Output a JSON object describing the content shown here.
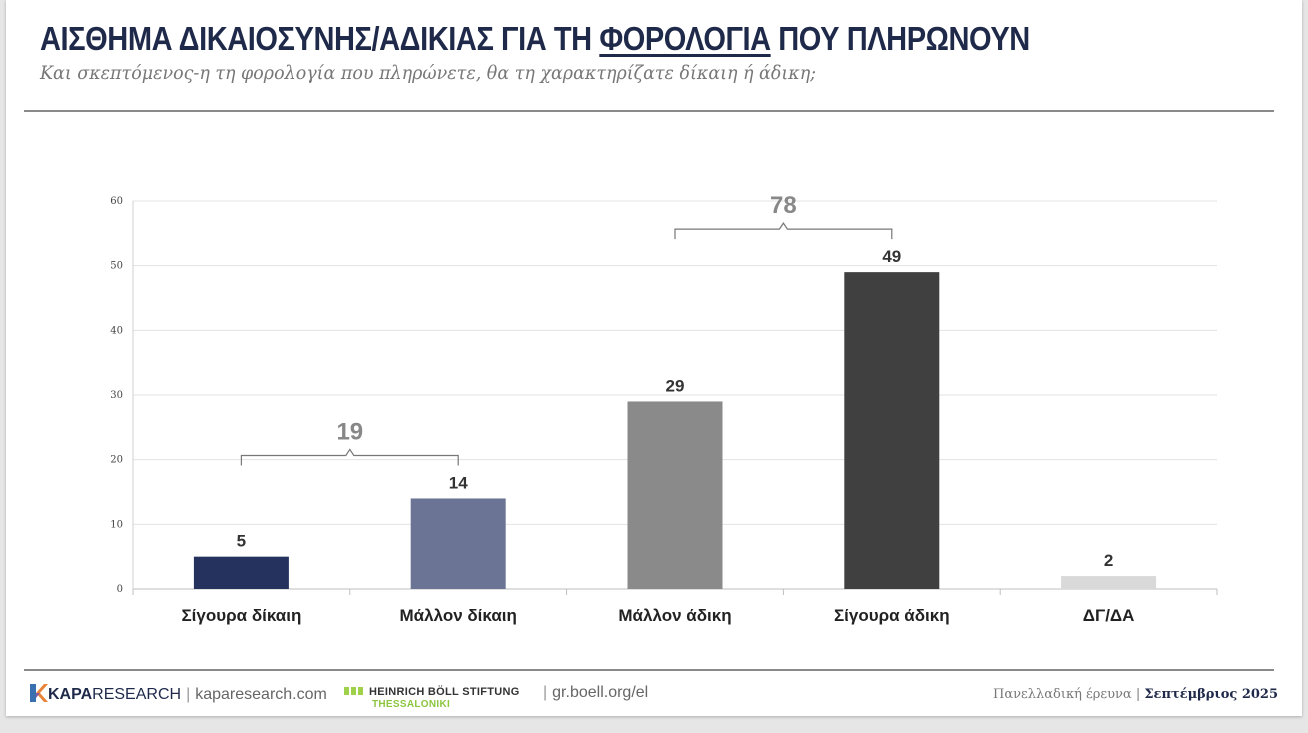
{
  "header": {
    "title_pre": "ΑΙΣΘΗΜΑ ΔΙΚΑΙΟΣΥΝΗΣ/ΑΔΙΚΙΑΣ ΓΙΑ ΤΗ ",
    "title_underlined": "ΦΟΡΟΛΟΓΙΑ",
    "title_post": " ΠΟΥ ΠΛΗΡΩΝΟΥΝ",
    "subtitle": "Και σκεπτόμενος-η τη φορολογία που πληρώνετε, θα τη χαρακτηρίζατε δίκαιη ή άδικη;"
  },
  "chart_data": {
    "type": "bar",
    "categories": [
      "Σίγουρα δίκαιη",
      "Μάλλον δίκαιη",
      "Μάλλον άδικη",
      "Σίγουρα άδικη",
      "ΔΓ/ΔΑ"
    ],
    "values": [
      5,
      14,
      29,
      49,
      2
    ],
    "colors": [
      "#26325e",
      "#6b7494",
      "#8a8a8a",
      "#404040",
      "#d9d9d9"
    ],
    "ylim": [
      0,
      60
    ],
    "yticks": [
      0,
      10,
      20,
      30,
      40,
      50,
      60
    ],
    "grid": true,
    "groups": [
      {
        "label": "19",
        "from": 0,
        "to": 1
      },
      {
        "label": "78",
        "from": 2,
        "to": 3
      }
    ]
  },
  "footer": {
    "kapa_bold": "KAPA",
    "kapa_light": "RESEARCH",
    "kapa_url": "kaparesearch.com",
    "boell_name": "HEINRICH BÖLL STIFTUNG",
    "boell_city": "THESSALONIKI",
    "boell_url": "gr.boell.org/el",
    "survey": "Πανελλαδική έρευνα",
    "date": "Σεπτέμβριος 2025"
  }
}
